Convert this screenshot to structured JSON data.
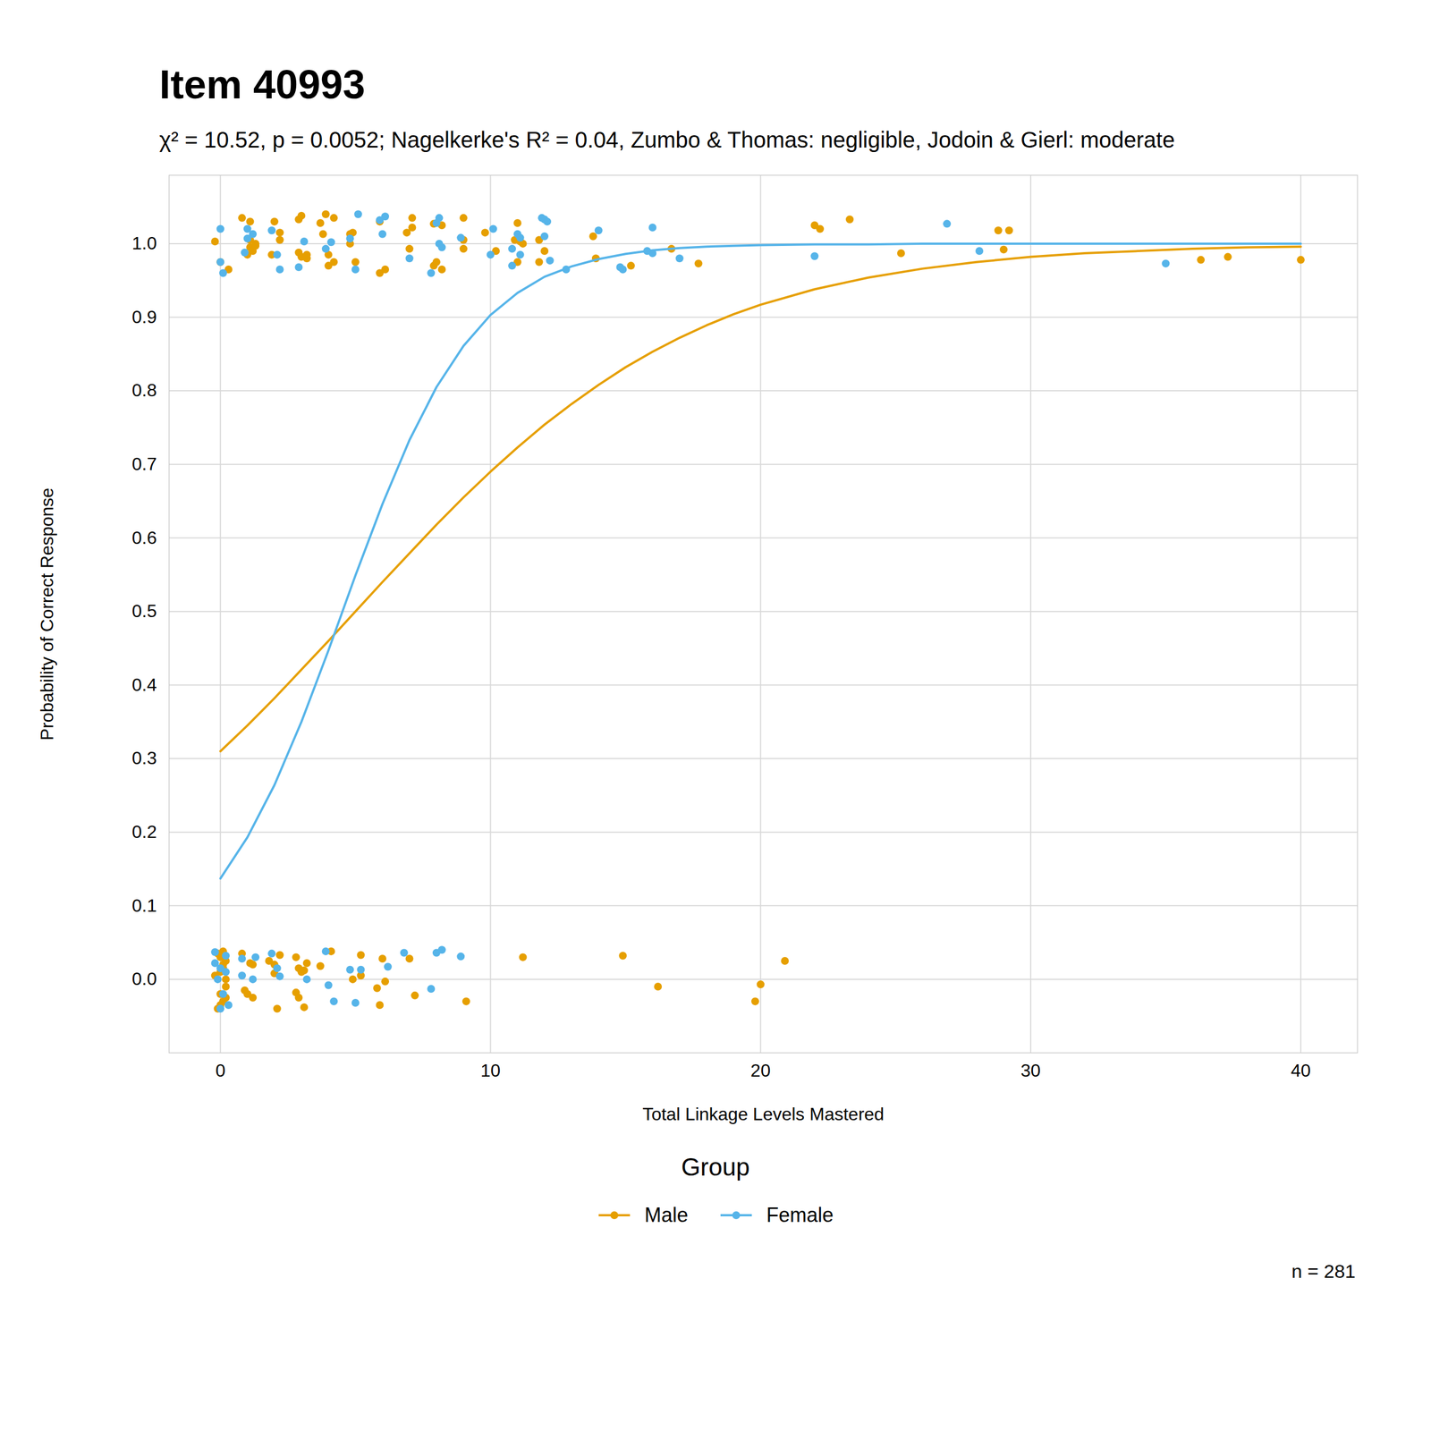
{
  "chart_data": {
    "type": "scatter",
    "title": "Item 40993",
    "subtitle": "χ² = 10.52, p = 0.0052; Nagelkerke's R² = 0.04, Zumbo & Thomas: negligible, Jodoin & Gierl: moderate",
    "x_label": "Total Linkage Levels Mastered",
    "y_label": "Probability of Correct Response",
    "legend_title": "Group",
    "caption": "n = 281",
    "legend": "bottom",
    "grid": true,
    "xlim": [
      -1.9,
      42.1
    ],
    "ylim": [
      -0.1,
      1.093
    ],
    "xticks": [
      0,
      10,
      20,
      30,
      40
    ],
    "yticks": [
      {
        "value": 0,
        "label": "0.0"
      },
      0.1,
      0.2,
      0.3,
      0.4,
      0.5,
      0.6,
      0.7,
      0.8,
      0.9,
      {
        "value": 1,
        "label": "1.0"
      }
    ],
    "series": [
      {
        "name": "Male",
        "color": "#E69F00",
        "marker": "circle",
        "line_style": "solid",
        "x": [
          0,
          1,
          2,
          3,
          4,
          5,
          6,
          7,
          8,
          9,
          10,
          11,
          12,
          13,
          14,
          15,
          16,
          17,
          18,
          19,
          20,
          22,
          24,
          26,
          28,
          30,
          32,
          34,
          36,
          38,
          40
        ],
        "values": [
          0.31,
          0.345,
          0.382,
          0.421,
          0.46,
          0.5,
          0.54,
          0.579,
          0.618,
          0.655,
          0.69,
          0.723,
          0.754,
          0.782,
          0.808,
          0.832,
          0.853,
          0.872,
          0.889,
          0.904,
          0.917,
          0.938,
          0.954,
          0.966,
          0.975,
          0.982,
          0.987,
          0.99,
          0.993,
          0.995,
          0.996
        ],
        "points": {
          "x": [
            -0.2,
            0,
            0.8,
            1.0,
            1.1,
            1.1,
            1.1,
            1.2,
            1.3,
            1.3,
            0.3,
            1.9,
            2.0,
            2.2,
            2.2,
            2.9,
            2.9,
            3.0,
            3.0,
            3.2,
            3.2,
            3.7,
            3.8,
            3.9,
            4.0,
            4.0,
            4.2,
            4.2,
            4.8,
            4.8,
            4.9,
            5.0,
            5.9,
            5.9,
            6.1,
            6.9,
            7.0,
            7.1,
            7.1,
            7.9,
            7.9,
            8.0,
            8.2,
            8.2,
            9.0,
            9.0,
            9.0,
            9.8,
            10.2,
            10.9,
            11.0,
            11.0,
            11.1,
            11.2,
            11.8,
            11.8,
            12.0,
            13.8,
            13.9,
            15.2,
            16.7,
            17.7,
            22.0,
            22.2,
            23.3,
            25.2,
            28.8,
            29.0,
            29.2,
            36.3,
            37.3,
            40.0,
            0,
            0,
            0,
            -0.1,
            0.1,
            0.1,
            0.2,
            0.2,
            0.1,
            -0.1,
            0.2,
            0,
            0.1,
            0.2,
            -0.2,
            0.8,
            0.9,
            1.0,
            1.1,
            1.2,
            1.2,
            1.8,
            2.0,
            2.0,
            2.1,
            2.2,
            2.8,
            2.8,
            2.9,
            2.9,
            3.0,
            3.1,
            3.1,
            3.2,
            3.7,
            4.1,
            4.9,
            5.2,
            5.2,
            5.8,
            5.9,
            6.0,
            6.1,
            7.0,
            7.2,
            9.1,
            11.2,
            14.9,
            16.2,
            19.8,
            20.0,
            20.9
          ],
          "y": [
            1.003,
            0.975,
            1.035,
            0.985,
            1.005,
            0.995,
            1.03,
            0.99,
            1.0,
            0.997,
            0.965,
            0.985,
            1.03,
            1.015,
            1.005,
            0.988,
            1.033,
            1.038,
            0.982,
            0.985,
            0.98,
            1.028,
            1.013,
            1.04,
            0.97,
            0.985,
            1.035,
            0.975,
            1.013,
            1.0,
            1.015,
            0.975,
            0.96,
            1.03,
            0.965,
            1.015,
            0.993,
            1.022,
            1.035,
            1.027,
            0.97,
            0.975,
            0.965,
            1.025,
            1.035,
            1.005,
            0.993,
            1.015,
            0.99,
            1.005,
            1.028,
            0.975,
            1.003,
            1.0,
            1.005,
            0.975,
            0.99,
            1.01,
            0.98,
            0.97,
            0.993,
            0.973,
            1.025,
            1.02,
            1.033,
            0.987,
            1.018,
            0.992,
            1.018,
            0.978,
            0.982,
            0.978,
            0.01,
            -0.02,
            0.03,
            -0.04,
            0.02,
            -0.03,
            0.0,
            -0.01,
            0.038,
            0.035,
            0.025,
            -0.035,
            0.015,
            -0.025,
            0.005,
            0.035,
            -0.015,
            -0.02,
            0.022,
            -0.025,
            0.02,
            0.025,
            0.02,
            0.008,
            -0.04,
            0.033,
            -0.018,
            0.03,
            0.015,
            -0.025,
            0.01,
            -0.038,
            0.012,
            0.022,
            0.018,
            0.038,
            0.0,
            0.033,
            0.005,
            -0.012,
            -0.035,
            0.028,
            -0.003,
            0.028,
            -0.022,
            -0.03,
            0.03,
            0.032,
            -0.01,
            -0.03,
            -0.007,
            0.025
          ]
        }
      },
      {
        "name": "Female",
        "color": "#56B4E9",
        "marker": "circle",
        "line_style": "solid",
        "x": [
          0,
          1,
          2,
          3,
          4,
          5,
          6,
          7,
          8,
          9,
          10,
          11,
          12,
          13,
          14,
          15,
          16,
          17,
          18,
          19,
          20,
          22,
          24,
          26,
          28,
          30,
          32,
          34,
          36,
          38,
          40
        ],
        "values": [
          0.137,
          0.193,
          0.264,
          0.35,
          0.447,
          0.549,
          0.646,
          0.733,
          0.805,
          0.861,
          0.903,
          0.933,
          0.955,
          0.969,
          0.979,
          0.986,
          0.991,
          0.994,
          0.996,
          0.997,
          0.998,
          0.999,
          0.999,
          1.0,
          1.0,
          1.0,
          1.0,
          1.0,
          1.0,
          1.0,
          1.0
        ],
        "points": {
          "x": [
            0,
            0,
            0.1,
            0.9,
            1.0,
            1.0,
            1.2,
            1.9,
            2.1,
            2.2,
            2.9,
            3.1,
            3.9,
            4.1,
            4.8,
            5.0,
            5.1,
            5.9,
            6.0,
            6.1,
            7.0,
            7.8,
            8.0,
            8.1,
            8.1,
            8.2,
            8.9,
            10.0,
            10.1,
            10.8,
            10.8,
            11.0,
            11.1,
            11.1,
            11.9,
            12.0,
            12.0,
            12.1,
            12.2,
            12.8,
            14.0,
            14.8,
            14.9,
            15.8,
            16.0,
            16.0,
            17.0,
            22.0,
            26.9,
            28.1,
            35.0,
            -0.2,
            -0.2,
            -0.1,
            0,
            0,
            0.1,
            0.2,
            0.2,
            0.3,
            0.8,
            0.8,
            1.2,
            1.3,
            1.9,
            2.1,
            2.2,
            3.2,
            3.9,
            4.0,
            4.2,
            4.8,
            5.0,
            5.2,
            6.2,
            6.8,
            7.8,
            8.0,
            8.2,
            8.9
          ],
          "y": [
            1.02,
            0.975,
            0.96,
            0.988,
            1.02,
            1.007,
            1.013,
            1.018,
            0.985,
            0.965,
            0.968,
            1.003,
            0.993,
            1.002,
            1.007,
            0.965,
            1.04,
            1.032,
            1.013,
            1.037,
            0.98,
            0.96,
            1.028,
            1.0,
            1.035,
            0.995,
            1.008,
            0.985,
            1.02,
            0.97,
            0.993,
            1.013,
            1.008,
            0.985,
            1.035,
            1.033,
            1.01,
            1.03,
            0.977,
            0.965,
            1.018,
            0.968,
            0.965,
            0.99,
            1.022,
            0.987,
            0.98,
            0.983,
            1.027,
            0.99,
            0.973,
            0.037,
            0.022,
            0.0,
            -0.04,
            0.015,
            -0.02,
            0.01,
            0.032,
            -0.035,
            0.005,
            0.028,
            0.0,
            0.03,
            0.035,
            0.015,
            0.004,
            0.0,
            0.038,
            -0.008,
            -0.03,
            0.013,
            -0.032,
            0.013,
            0.017,
            0.036,
            -0.013,
            0.036,
            0.04,
            0.031
          ]
        }
      }
    ]
  }
}
